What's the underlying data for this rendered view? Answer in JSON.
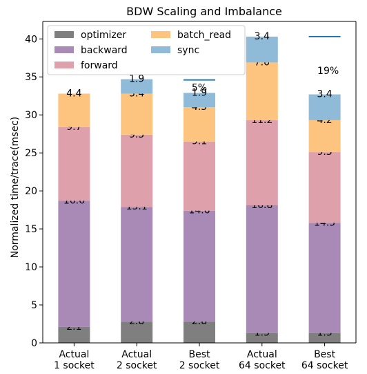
{
  "chart_data": {
    "type": "bar",
    "stacked": true,
    "title": "BDW Scaling and Imbalance",
    "xlabel": "",
    "ylabel": "Normalized time/trace(msec)",
    "ylim": [
      0,
      42.3
    ],
    "yticks": [
      0,
      5,
      10,
      15,
      20,
      25,
      30,
      35,
      40
    ],
    "grid": false,
    "legend_position": "top-left",
    "categories": [
      [
        "Actual",
        "1 socket"
      ],
      [
        "Actual",
        "2 socket"
      ],
      [
        "Best",
        "2 socket"
      ],
      [
        "Actual",
        "64 socket"
      ],
      [
        "Best",
        "64 socket"
      ]
    ],
    "series": [
      {
        "name": "optimizer",
        "color": "#7f7f7f",
        "values": [
          2.1,
          2.8,
          2.8,
          1.3,
          1.3
        ]
      },
      {
        "name": "backward",
        "color": "#a989b5",
        "values": [
          16.6,
          15.1,
          14.6,
          16.8,
          14.5
        ]
      },
      {
        "name": "forward",
        "color": "#dea0ab",
        "values": [
          9.7,
          9.5,
          9.1,
          11.2,
          9.3
        ]
      },
      {
        "name": "batch_read",
        "color": "#fcc47f",
        "values": [
          4.4,
          5.4,
          4.5,
          7.6,
          4.2
        ]
      },
      {
        "name": "sync",
        "color": "#8fbad8",
        "values": [
          0,
          1.9,
          1.9,
          3.4,
          3.4
        ]
      }
    ],
    "legend_order": [
      "optimizer",
      "backward",
      "forward",
      "batch_read",
      "sync"
    ],
    "annotations": [
      {
        "category_index": 2,
        "text": "5%",
        "line_value": 34.6,
        "line_color": "#1f77b4"
      },
      {
        "category_index": 4,
        "text": "19%",
        "line_value": 40.3,
        "line_color": "#1f77b4"
      }
    ]
  }
}
